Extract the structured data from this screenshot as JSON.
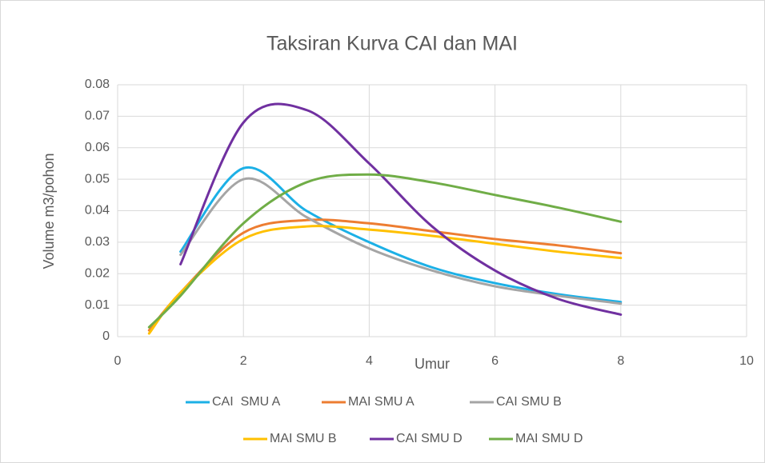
{
  "chart_data": {
    "type": "line",
    "title": "Taksiran Kurva CAI dan MAI",
    "x_label": "Umur",
    "y_label": "Volume m3/pohon",
    "x": [
      0.5,
      1,
      2,
      3,
      4,
      5,
      6,
      7,
      8
    ],
    "series": [
      {
        "name": "CAI  SMU A",
        "color": "#1cb0e6",
        "values": [
          null,
          0.027,
          0.0535,
          0.04,
          0.03,
          0.022,
          0.017,
          0.0135,
          0.011
        ]
      },
      {
        "name": "MAI SMU A",
        "color": "#ed7d31",
        "values": [
          0.002,
          0.014,
          0.033,
          0.037,
          0.036,
          0.0335,
          0.031,
          0.029,
          0.0265
        ]
      },
      {
        "name": "CAI SMU B",
        "color": "#a5a5a5",
        "values": [
          null,
          0.026,
          0.05,
          0.038,
          0.028,
          0.021,
          0.016,
          0.013,
          0.0105
        ]
      },
      {
        "name": "MAI SMU B",
        "color": "#ffc000",
        "values": [
          0.001,
          0.014,
          0.031,
          0.035,
          0.034,
          0.032,
          0.0295,
          0.027,
          0.025
        ]
      },
      {
        "name": "CAI SMU D",
        "color": "#7030a0",
        "values": [
          null,
          0.023,
          0.068,
          0.072,
          0.055,
          0.035,
          0.021,
          0.012,
          0.007
        ]
      },
      {
        "name": "MAI SMU D",
        "color": "#70ad47",
        "values": [
          0.003,
          0.013,
          0.036,
          0.049,
          0.0515,
          0.049,
          0.045,
          0.041,
          0.0365
        ]
      }
    ],
    "xlim": [
      0,
      10
    ],
    "xticks": [
      0,
      2,
      4,
      6,
      8,
      10
    ],
    "ylim": [
      0,
      0.08
    ],
    "yticks": [
      0,
      0.01,
      0.02,
      0.03,
      0.04,
      0.05,
      0.06,
      0.07,
      0.08
    ],
    "grid": true,
    "legend": "bottom"
  }
}
